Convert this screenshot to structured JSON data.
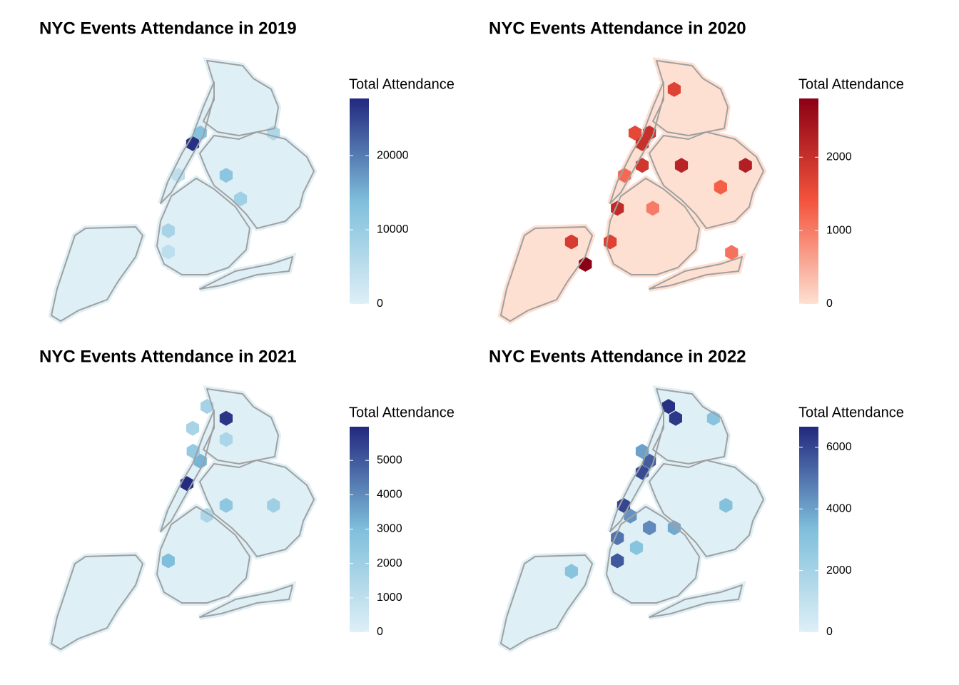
{
  "chart_data": [
    {
      "type": "hexbin",
      "title": "NYC Events Attendance in 2019",
      "legend_title": "Total Attendance",
      "colors": [
        "#deeff6",
        "#7fbfdc",
        "#22287e"
      ],
      "clim": [
        0,
        27700
      ],
      "cticks": [
        0,
        10000,
        20000
      ],
      "hexes": [
        {
          "lon": -73.954,
          "lat": 40.781,
          "value": 27000
        },
        {
          "lon": -73.938,
          "lat": 40.798,
          "value": 13000
        },
        {
          "lon": -73.884,
          "lat": 40.73,
          "value": 12000
        },
        {
          "lon": -73.854,
          "lat": 40.692,
          "value": 9000
        },
        {
          "lon": -74.005,
          "lat": 40.641,
          "value": 8000
        },
        {
          "lon": -73.785,
          "lat": 40.798,
          "value": 7000
        },
        {
          "lon": -74.005,
          "lat": 40.607,
          "value": 5000
        },
        {
          "lon": -73.984,
          "lat": 40.73,
          "value": 5000
        }
      ]
    },
    {
      "type": "hexbin",
      "title": "NYC Events Attendance in 2020",
      "legend_title": "Total Attendance",
      "colors": [
        "#fde0d2",
        "#f4543c",
        "#8b0015"
      ],
      "clim": [
        0,
        2800
      ],
      "cticks": [
        0,
        1000,
        2000
      ],
      "hexes": [
        {
          "lon": -74.073,
          "lat": 40.587,
          "value": 2800
        },
        {
          "lon": -73.738,
          "lat": 40.746,
          "value": 2300
        },
        {
          "lon": -73.872,
          "lat": 40.746,
          "value": 2200
        },
        {
          "lon": -73.939,
          "lat": 40.798,
          "value": 2000
        },
        {
          "lon": -73.954,
          "lat": 40.781,
          "value": 2000
        },
        {
          "lon": -73.887,
          "lat": 40.868,
          "value": 1700
        },
        {
          "lon": -74.006,
          "lat": 40.677,
          "value": 2100
        },
        {
          "lon": -73.954,
          "lat": 40.746,
          "value": 1900
        },
        {
          "lon": -73.969,
          "lat": 40.798,
          "value": 1600
        },
        {
          "lon": -74.102,
          "lat": 40.623,
          "value": 1800
        },
        {
          "lon": -74.021,
          "lat": 40.623,
          "value": 1700
        },
        {
          "lon": -73.79,
          "lat": 40.711,
          "value": 1300
        },
        {
          "lon": -73.991,
          "lat": 40.73,
          "value": 1200
        },
        {
          "lon": -73.767,
          "lat": 40.606,
          "value": 1100
        },
        {
          "lon": -73.932,
          "lat": 40.677,
          "value": 1000
        }
      ]
    },
    {
      "type": "hexbin",
      "title": "NYC Events Attendance in 2021",
      "legend_title": "Total Attendance",
      "colors": [
        "#deeff6",
        "#7fbfdc",
        "#22287e"
      ],
      "clim": [
        0,
        5980
      ],
      "cticks": [
        0,
        1000,
        2000,
        3000,
        4000,
        5000
      ],
      "hexes": [
        {
          "lon": -73.966,
          "lat": 40.762,
          "value": 5900
        },
        {
          "lon": -73.884,
          "lat": 40.867,
          "value": 5700
        },
        {
          "lon": -73.938,
          "lat": 40.798,
          "value": 3200
        },
        {
          "lon": -74.005,
          "lat": 40.638,
          "value": 3000
        },
        {
          "lon": -73.884,
          "lat": 40.727,
          "value": 2500
        },
        {
          "lon": -73.953,
          "lat": 40.814,
          "value": 2300
        },
        {
          "lon": -73.924,
          "lat": 40.886,
          "value": 1800
        },
        {
          "lon": -73.785,
          "lat": 40.727,
          "value": 2000
        },
        {
          "lon": -73.954,
          "lat": 40.851,
          "value": 1700
        },
        {
          "lon": -73.884,
          "lat": 40.833,
          "value": 1600
        },
        {
          "lon": -73.924,
          "lat": 40.711,
          "value": 1600
        }
      ]
    },
    {
      "type": "hexbin",
      "title": "NYC Events Attendance in 2022",
      "legend_title": "Total Attendance",
      "colors": [
        "#deeff6",
        "#7fbfdc",
        "#22287e"
      ],
      "clim": [
        0,
        6670
      ],
      "cticks": [
        0,
        2000,
        4000,
        6000
      ],
      "hexes": [
        {
          "lon": -73.899,
          "lat": 40.886,
          "value": 6500
        },
        {
          "lon": -73.884,
          "lat": 40.867,
          "value": 6300
        },
        {
          "lon": -73.939,
          "lat": 40.798,
          "value": 5500
        },
        {
          "lon": -73.954,
          "lat": 40.78,
          "value": 5900
        },
        {
          "lon": -73.993,
          "lat": 40.727,
          "value": 6000
        },
        {
          "lon": -74.006,
          "lat": 40.638,
          "value": 5600
        },
        {
          "lon": -74.006,
          "lat": 40.675,
          "value": 5000
        },
        {
          "lon": -73.939,
          "lat": 40.691,
          "value": 4500
        },
        {
          "lon": -73.979,
          "lat": 40.71,
          "value": 4300
        },
        {
          "lon": -73.954,
          "lat": 40.814,
          "value": 4000
        },
        {
          "lon": -73.887,
          "lat": 40.691,
          "value": 3800
        },
        {
          "lon": -73.779,
          "lat": 40.727,
          "value": 3200
        },
        {
          "lon": -73.805,
          "lat": 40.867,
          "value": 3000
        },
        {
          "lon": -74.102,
          "lat": 40.621,
          "value": 3000
        },
        {
          "lon": -73.966,
          "lat": 40.659,
          "value": 3000
        }
      ]
    }
  ]
}
